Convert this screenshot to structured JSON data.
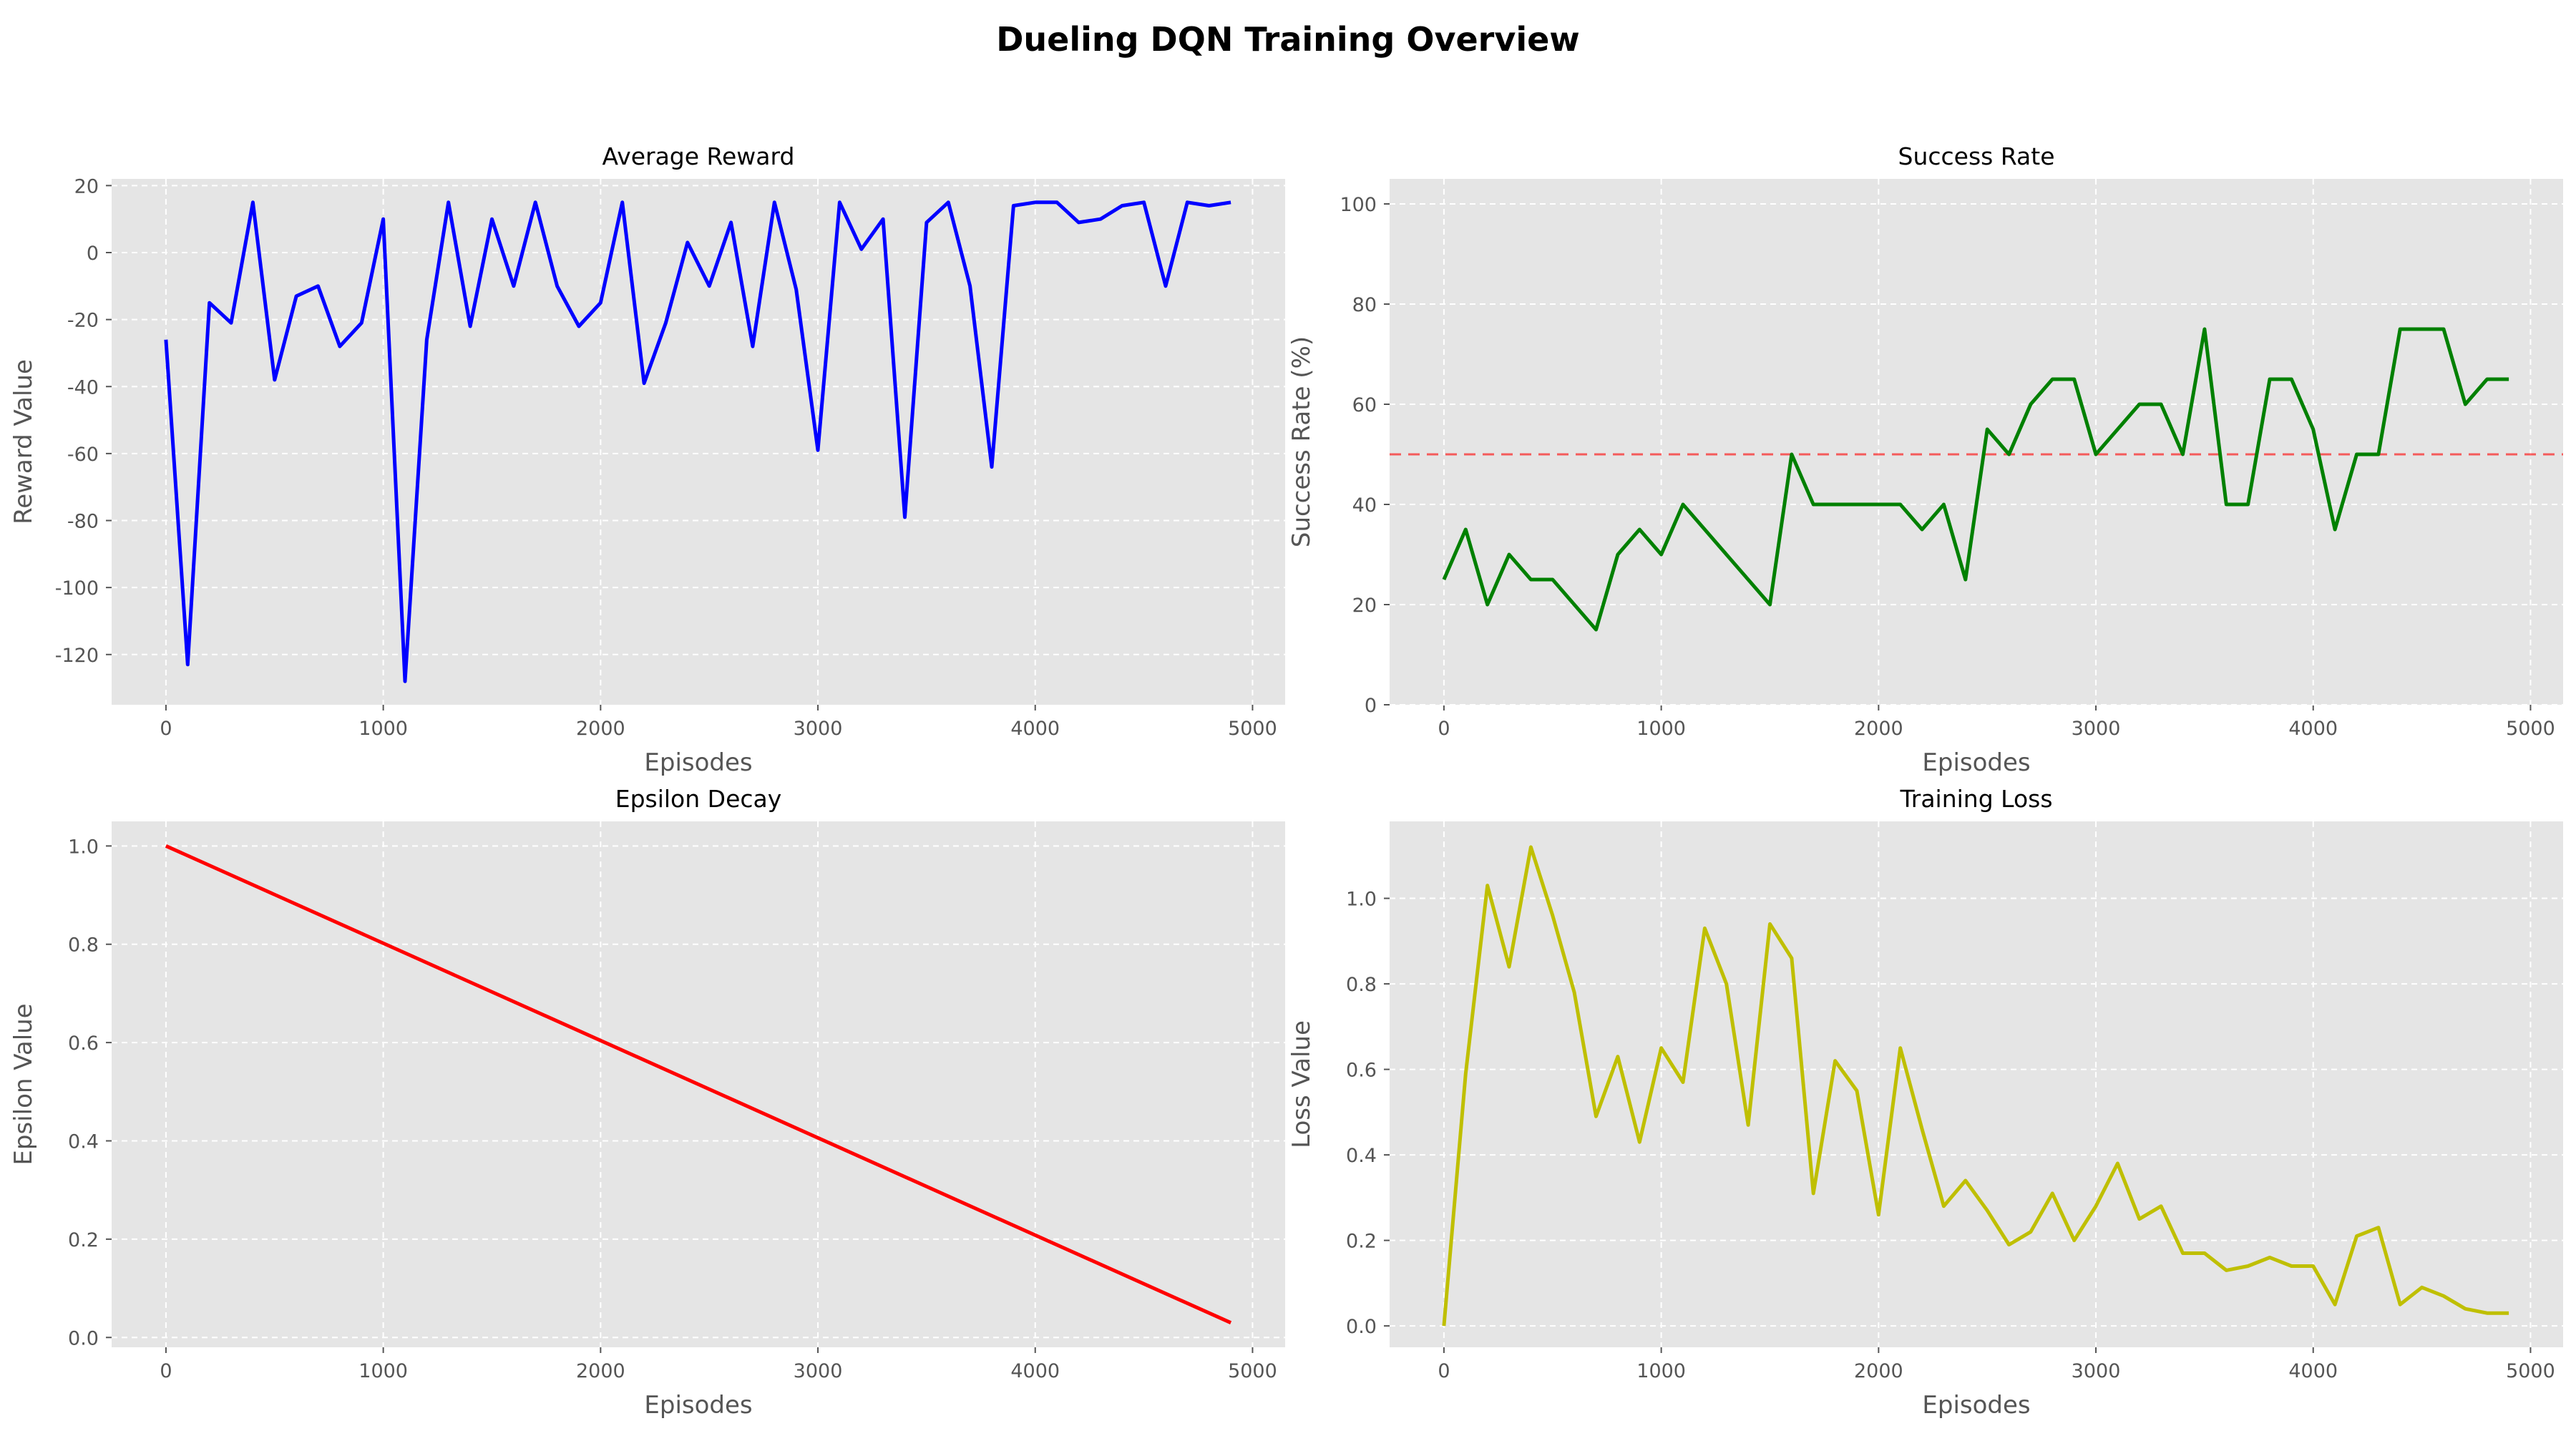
{
  "suptitle": "Dueling DQN Training Overview",
  "chart_data": [
    {
      "type": "line",
      "title": "Average Reward",
      "xlabel": "Episodes",
      "ylabel": "Reward Value",
      "xlim": [
        -250,
        5150
      ],
      "ylim": [
        -135,
        22
      ],
      "xticks": [
        0,
        1000,
        2000,
        3000,
        4000,
        5000
      ],
      "yticks": [
        -120,
        -100,
        -80,
        -60,
        -40,
        -20,
        0,
        20
      ],
      "grid": true,
      "color": "#0000ff",
      "x": [
        0,
        100,
        200,
        300,
        400,
        500,
        600,
        700,
        800,
        900,
        1000,
        1100,
        1200,
        1300,
        1400,
        1500,
        1600,
        1700,
        1800,
        1900,
        2000,
        2100,
        2200,
        2300,
        2400,
        2500,
        2600,
        2700,
        2800,
        2900,
        3000,
        3100,
        3200,
        3300,
        3400,
        3500,
        3600,
        3700,
        3800,
        3900,
        4000,
        4100,
        4200,
        4300,
        4400,
        4500,
        4600,
        4700,
        4800,
        4900
      ],
      "y": [
        -26,
        -123,
        -15,
        -21,
        15,
        -38,
        -13,
        -10,
        -28,
        -21,
        10,
        -128,
        -26,
        15,
        -22,
        10,
        -10,
        15,
        -10,
        -22,
        -15,
        15,
        -39,
        -21,
        3,
        -10,
        9,
        -28,
        15,
        -11,
        -59,
        15,
        1,
        10,
        -79,
        9,
        15,
        -10,
        -64,
        14,
        15,
        15,
        9,
        10,
        14,
        15,
        -10,
        15,
        14,
        15
      ]
    },
    {
      "type": "line",
      "title": "Success Rate",
      "xlabel": "Episodes",
      "ylabel": "Success Rate (%)",
      "xlim": [
        -250,
        5150
      ],
      "ylim": [
        0,
        105
      ],
      "xticks": [
        0,
        1000,
        2000,
        3000,
        4000,
        5000
      ],
      "yticks": [
        0,
        20,
        40,
        60,
        80,
        100
      ],
      "grid": true,
      "color": "#008000",
      "hline": {
        "y": 50,
        "color": "#ff0000"
      },
      "x": [
        0,
        100,
        200,
        300,
        400,
        500,
        600,
        700,
        800,
        900,
        1000,
        1100,
        1200,
        1300,
        1400,
        1500,
        1600,
        1700,
        1800,
        1900,
        2000,
        2100,
        2200,
        2300,
        2400,
        2500,
        2600,
        2700,
        2800,
        2900,
        3000,
        3100,
        3200,
        3300,
        3400,
        3500,
        3600,
        3700,
        3800,
        3900,
        4000,
        4100,
        4200,
        4300,
        4400,
        4500,
        4600,
        4700,
        4800,
        4900
      ],
      "y": [
        25,
        35,
        20,
        30,
        25,
        25,
        20,
        15,
        30,
        35,
        30,
        40,
        35,
        30,
        25,
        20,
        50,
        40,
        40,
        40,
        40,
        40,
        35,
        40,
        25,
        55,
        50,
        60,
        65,
        65,
        50,
        55,
        60,
        60,
        50,
        75,
        40,
        40,
        65,
        65,
        55,
        35,
        50,
        50,
        75,
        75,
        75,
        60,
        65,
        65
      ]
    },
    {
      "type": "line",
      "title": "Epsilon Decay",
      "xlabel": "Episodes",
      "ylabel": "Epsilon Value",
      "xlim": [
        -250,
        5150
      ],
      "ylim": [
        -0.02,
        1.05
      ],
      "xticks": [
        0,
        1000,
        2000,
        3000,
        4000,
        5000
      ],
      "yticks": [
        0.0,
        0.2,
        0.4,
        0.6,
        0.8,
        1.0
      ],
      "grid": true,
      "color": "#ff0000",
      "x": [
        0,
        4900
      ],
      "y": [
        1.0,
        0.03
      ]
    },
    {
      "type": "line",
      "title": "Training Loss",
      "xlabel": "Episodes",
      "ylabel": "Loss Value",
      "xlim": [
        -250,
        5150
      ],
      "ylim": [
        -0.05,
        1.18
      ],
      "xticks": [
        0,
        1000,
        2000,
        3000,
        4000,
        5000
      ],
      "yticks": [
        0.0,
        0.2,
        0.4,
        0.6,
        0.8,
        1.0
      ],
      "grid": true,
      "color": "#bfbf00",
      "x": [
        0,
        100,
        200,
        300,
        400,
        500,
        600,
        700,
        800,
        900,
        1000,
        1100,
        1200,
        1300,
        1400,
        1500,
        1600,
        1700,
        1800,
        1900,
        2000,
        2100,
        2200,
        2300,
        2400,
        2500,
        2600,
        2700,
        2800,
        2900,
        3000,
        3100,
        3200,
        3300,
        3400,
        3500,
        3600,
        3700,
        3800,
        3900,
        4000,
        4100,
        4200,
        4300,
        4400,
        4500,
        4600,
        4700,
        4800,
        4900
      ],
      "y": [
        0.0,
        0.59,
        1.03,
        0.84,
        1.12,
        0.96,
        0.78,
        0.49,
        0.63,
        0.43,
        0.65,
        0.57,
        0.93,
        0.8,
        0.47,
        0.94,
        0.86,
        0.31,
        0.62,
        0.55,
        0.26,
        0.65,
        0.46,
        0.28,
        0.34,
        0.27,
        0.19,
        0.22,
        0.31,
        0.2,
        0.28,
        0.38,
        0.25,
        0.28,
        0.17,
        0.17,
        0.13,
        0.14,
        0.16,
        0.14,
        0.14,
        0.05,
        0.21,
        0.23,
        0.05,
        0.09,
        0.07,
        0.04,
        0.03,
        0.03
      ]
    }
  ]
}
